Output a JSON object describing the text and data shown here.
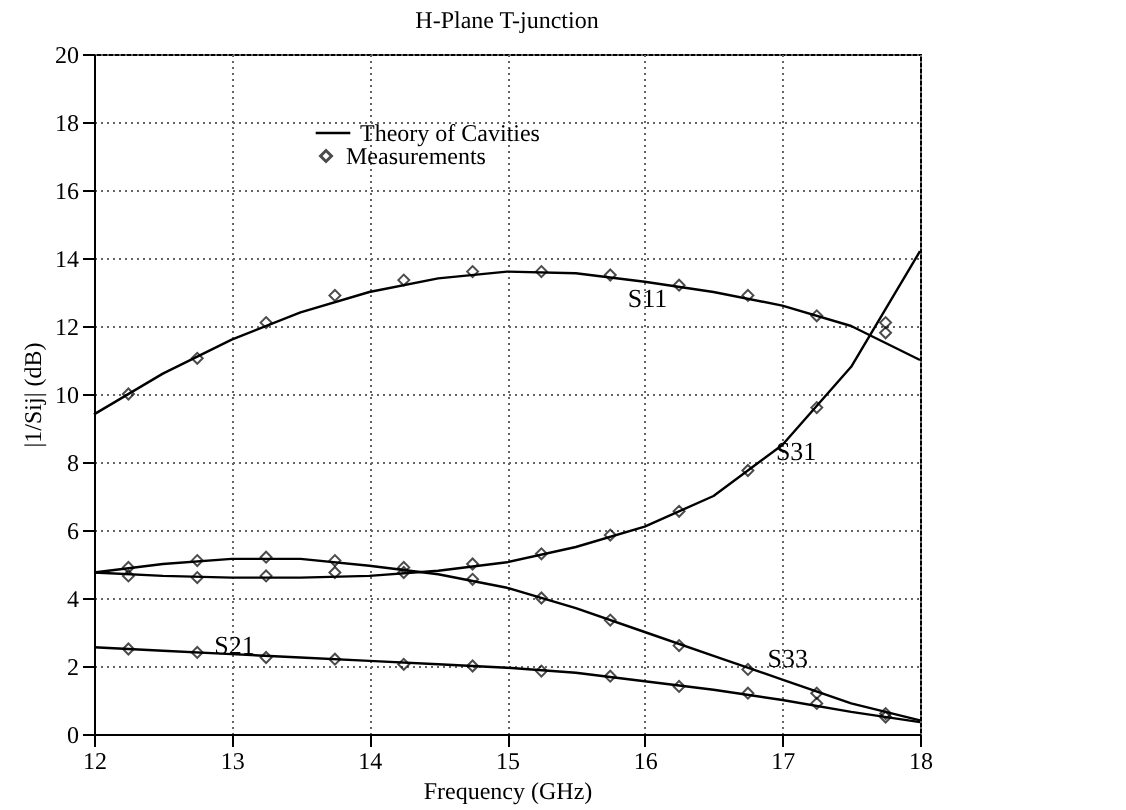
{
  "chart_data": {
    "type": "line",
    "title": "H-Plane T-junction",
    "xlabel": "Frequency (GHz)",
    "ylabel": "|1/Sij| (dB)",
    "xlim": [
      12,
      18
    ],
    "xticks": [
      12,
      13,
      14,
      15,
      16,
      17,
      18
    ],
    "ylim": [
      0,
      20
    ],
    "yticks": [
      0,
      2,
      4,
      6,
      8,
      10,
      12,
      14,
      16,
      18,
      20
    ],
    "grid": true,
    "legend": "top",
    "marker": "none",
    "line_style": "solid",
    "annotations": [
      "S11",
      "S31",
      "S33",
      "S21"
    ],
    "series": [
      {
        "name": "Theory of Cavities",
        "color": "#000000",
        "x": [
          12,
          12.5,
          13,
          13.5,
          14,
          14.5,
          15,
          15.5,
          16,
          16.5,
          17,
          17.5,
          18
        ],
        "values": [
          9.4,
          10.6,
          11.6,
          12.4,
          13.0,
          13.4,
          13.6,
          13.55,
          13.3,
          13.0,
          12.6,
          12.0,
          11.0
        ]
      },
      {
        "color": "#000000",
        "x": [
          12,
          12.5,
          13,
          13.5,
          14,
          14.5,
          15,
          15.5,
          16,
          16.5,
          17,
          17.5,
          18
        ],
        "values": [
          4.75,
          4.65,
          4.6,
          4.6,
          4.65,
          4.8,
          5.05,
          5.5,
          6.1,
          7.0,
          8.5,
          10.8,
          14.2
        ]
      },
      {
        "color": "#000000",
        "x": [
          12,
          12.5,
          13,
          13.5,
          14,
          14.5,
          15,
          15.5,
          16,
          16.5,
          17,
          17.5,
          18
        ],
        "values": [
          4.75,
          5.0,
          5.15,
          5.15,
          4.95,
          4.7,
          4.3,
          3.7,
          3.0,
          2.3,
          1.6,
          0.9,
          0.4
        ]
      },
      {
        "color": "#000000",
        "x": [
          12,
          12.5,
          13,
          13.5,
          14,
          14.5,
          15,
          15.5,
          16,
          16.5,
          17,
          17.5,
          18
        ],
        "values": [
          2.55,
          2.45,
          2.35,
          2.25,
          2.15,
          2.05,
          1.95,
          1.8,
          1.55,
          1.3,
          1.0,
          0.65,
          0.35
        ]
      },
      {
        "name": "Measurements",
        "type": "scatter",
        "marker": "diamond",
        "color": "#000000",
        "x": [
          12.25,
          12.75,
          13.25,
          13.75,
          14.25,
          14.75,
          15.25,
          15.75,
          16.25,
          16.75,
          17.25,
          17.75
        ],
        "values": [
          10.0,
          11.05,
          12.1,
          12.9,
          13.35,
          13.6,
          13.6,
          13.5,
          13.2,
          12.9,
          12.3,
          11.8
        ]
      },
      {
        "type": "scatter",
        "marker": "diamond",
        "color": "#000000",
        "x": [
          12.25,
          12.75,
          13.25,
          13.75,
          14.25,
          14.75,
          15.25,
          15.75,
          16.25,
          16.75,
          17.25,
          17.75
        ],
        "values": [
          4.65,
          4.6,
          4.65,
          4.75,
          4.75,
          5.0,
          5.3,
          5.85,
          6.55,
          7.75,
          9.6,
          12.1
        ]
      },
      {
        "type": "scatter",
        "marker": "diamond",
        "color": "#000000",
        "x": [
          12.25,
          12.75,
          13.25,
          13.75,
          14.25,
          14.75,
          15.25,
          15.75,
          16.25,
          16.75,
          17.25,
          17.75
        ],
        "values": [
          4.9,
          5.1,
          5.2,
          5.1,
          4.9,
          4.55,
          4.0,
          3.35,
          2.6,
          1.9,
          1.2,
          0.5
        ]
      },
      {
        "type": "scatter",
        "marker": "diamond",
        "color": "#000000",
        "x": [
          12.25,
          12.75,
          13.25,
          13.75,
          14.25,
          14.75,
          15.25,
          15.75,
          16.25,
          16.75,
          17.25,
          17.75
        ],
        "values": [
          2.5,
          2.4,
          2.25,
          2.2,
          2.05,
          2.0,
          1.85,
          1.7,
          1.4,
          1.2,
          0.9,
          0.6
        ]
      }
    ]
  }
}
